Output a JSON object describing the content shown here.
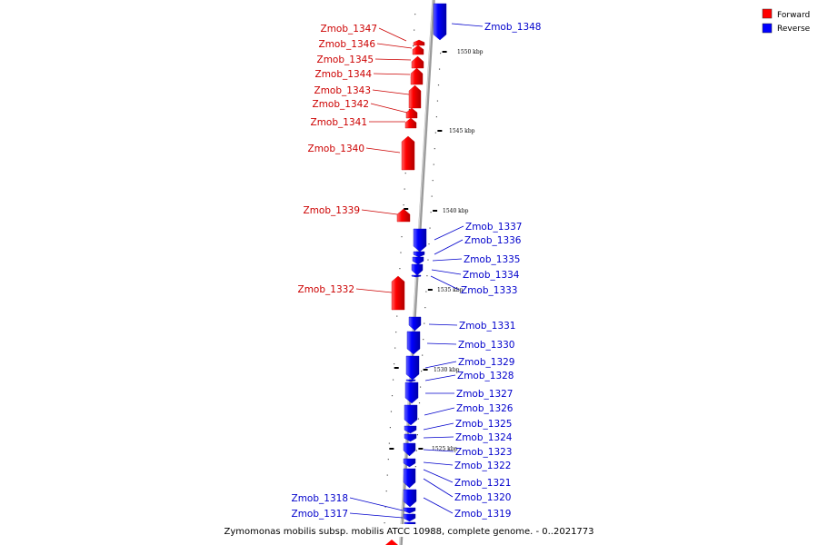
{
  "caption": "Zymomonas mobilis subsp. mobilis ATCC 10988, complete genome. - 0..2021773",
  "legend": [
    {
      "label": "Forward",
      "color": "#ff0000"
    },
    {
      "label": "Reverse",
      "color": "#0000ff"
    }
  ],
  "colors": {
    "forward": "#ff0000",
    "reverse": "#0000ff",
    "backbone": "#999999"
  },
  "scale_labels": [
    "1550 kbp",
    "1545 kbp",
    "1540 kbp",
    "1535 kbp",
    "1530 kbp",
    "1525 kbp"
  ],
  "genes": [
    {
      "name": "Zmob_1348",
      "strand": "reverse"
    },
    {
      "name": "Zmob_1347",
      "strand": "forward"
    },
    {
      "name": "Zmob_1346",
      "strand": "forward"
    },
    {
      "name": "Zmob_1345",
      "strand": "forward"
    },
    {
      "name": "Zmob_1344",
      "strand": "forward"
    },
    {
      "name": "Zmob_1343",
      "strand": "forward"
    },
    {
      "name": "Zmob_1342",
      "strand": "forward"
    },
    {
      "name": "Zmob_1341",
      "strand": "forward"
    },
    {
      "name": "Zmob_1340",
      "strand": "forward"
    },
    {
      "name": "Zmob_1339",
      "strand": "forward"
    },
    {
      "name": "Zmob_1337",
      "strand": "reverse"
    },
    {
      "name": "Zmob_1336",
      "strand": "reverse"
    },
    {
      "name": "Zmob_1335",
      "strand": "reverse"
    },
    {
      "name": "Zmob_1334",
      "strand": "reverse"
    },
    {
      "name": "Zmob_1333",
      "strand": "reverse"
    },
    {
      "name": "Zmob_1332",
      "strand": "forward"
    },
    {
      "name": "Zmob_1331",
      "strand": "reverse"
    },
    {
      "name": "Zmob_1330",
      "strand": "reverse"
    },
    {
      "name": "Zmob_1329",
      "strand": "reverse"
    },
    {
      "name": "Zmob_1328",
      "strand": "reverse"
    },
    {
      "name": "Zmob_1327",
      "strand": "reverse"
    },
    {
      "name": "Zmob_1326",
      "strand": "reverse"
    },
    {
      "name": "Zmob_1325",
      "strand": "reverse"
    },
    {
      "name": "Zmob_1324",
      "strand": "reverse"
    },
    {
      "name": "Zmob_1323",
      "strand": "reverse"
    },
    {
      "name": "Zmob_1322",
      "strand": "reverse"
    },
    {
      "name": "Zmob_1321",
      "strand": "reverse"
    },
    {
      "name": "Zmob_1320",
      "strand": "reverse"
    },
    {
      "name": "Zmob_1319",
      "strand": "reverse"
    },
    {
      "name": "Zmob_1318",
      "strand": "reverse"
    },
    {
      "name": "Zmob_1317",
      "strand": "reverse"
    }
  ]
}
